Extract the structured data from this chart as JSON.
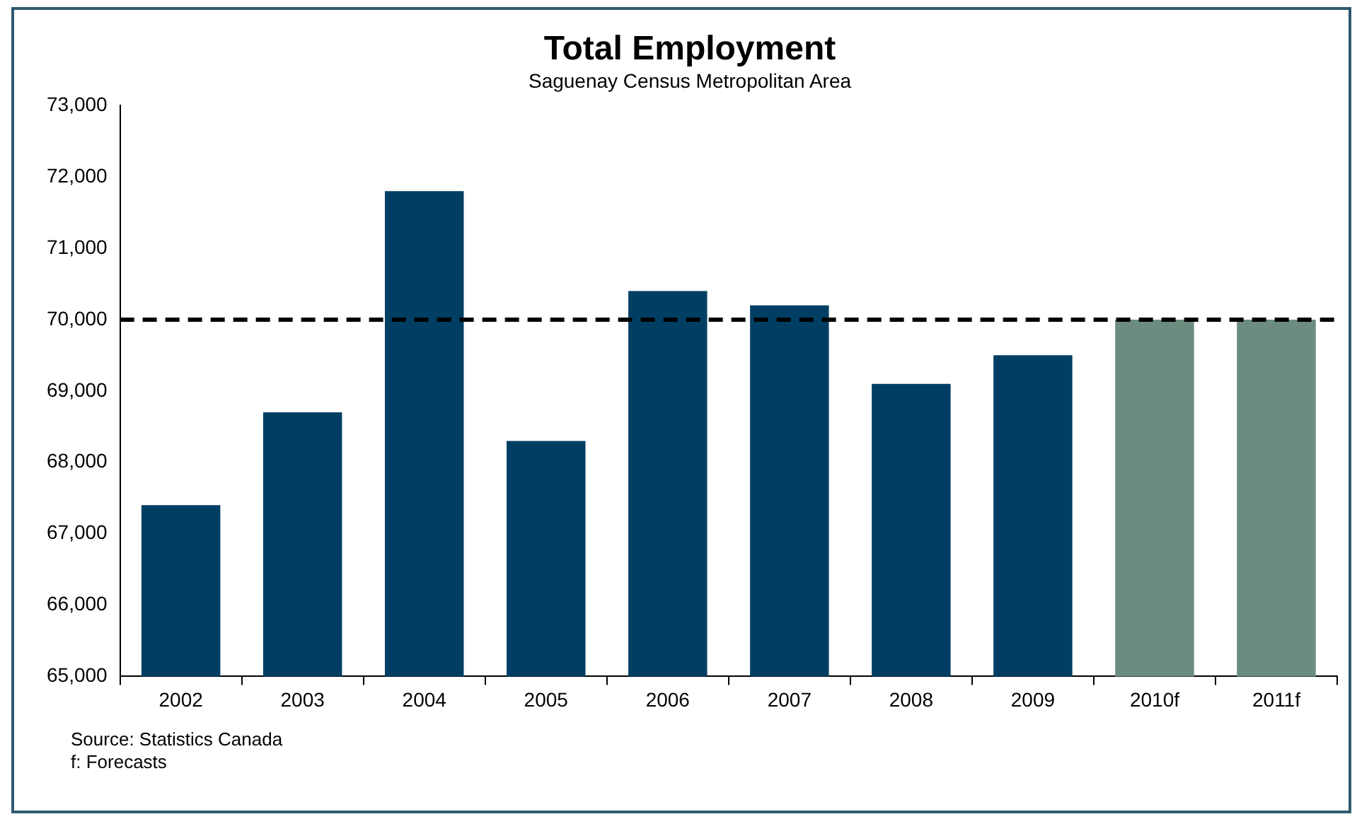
{
  "chart_data": {
    "type": "bar",
    "title": "Total Employment",
    "subtitle": "Saguenay Census Metropolitan Area",
    "categories": [
      "2002",
      "2003",
      "2004",
      "2005",
      "2006",
      "2007",
      "2008",
      "2009",
      "2010f",
      "2011f"
    ],
    "values": [
      67400,
      68700,
      71800,
      68300,
      70400,
      70200,
      69100,
      69500,
      70000,
      70000
    ],
    "colors": [
      "#003f63",
      "#003f63",
      "#003f63",
      "#003f63",
      "#003f63",
      "#003f63",
      "#003f63",
      "#003f63",
      "#6b8c7e",
      "#6b8c7e"
    ],
    "ylim": [
      65000,
      73000
    ],
    "yticks": [
      {
        "value": 65000,
        "label": "65,000"
      },
      {
        "value": 66000,
        "label": "66,000"
      },
      {
        "value": 67000,
        "label": "67,000"
      },
      {
        "value": 68000,
        "label": "68,000"
      },
      {
        "value": 69000,
        "label": "69,000"
      },
      {
        "value": 70000,
        "label": "70,000"
      },
      {
        "value": 71000,
        "label": "71,000"
      },
      {
        "value": 72000,
        "label": "72,000"
      },
      {
        "value": 73000,
        "label": "73,000"
      }
    ],
    "grid": false,
    "legend": false,
    "ref_lines": [
      {
        "axis": "y",
        "value": 70000,
        "color": "#000000",
        "line_style": "dashed"
      }
    ],
    "annotations": [
      "Source: Statistics Canada",
      "f: Forecasts"
    ]
  }
}
